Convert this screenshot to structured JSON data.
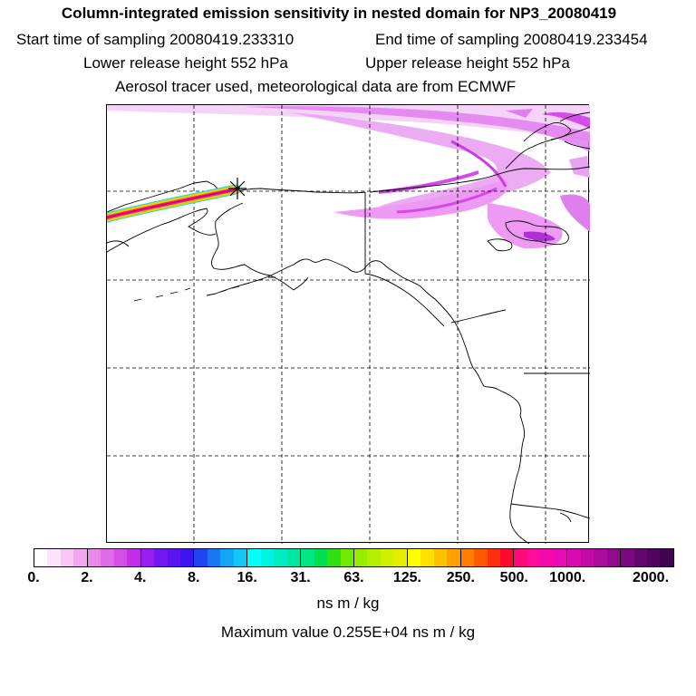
{
  "header": {
    "title": "Column-integrated emission sensitivity in nested domain for NP3_20080419",
    "start_time": "Start time of sampling 20080419.233310",
    "end_time": "End time of sampling 20080419.233454",
    "lower_release": "Lower release height  552 hPa",
    "upper_release": "Upper release height  552 hPa",
    "tracer_info": "Aerosol tracer used, meteorological data are from ECMWF"
  },
  "colorbar": {
    "ticks": [
      "0.",
      "2.",
      "4.",
      "8.",
      "16.",
      "31.",
      "63.",
      "125.",
      "250.",
      "500.",
      "1000.",
      "2000."
    ],
    "units": "ns m / kg",
    "segments": [
      [
        "#ffffff",
        "#fbe3fb",
        "#f6c6f6",
        "#f1a8f1"
      ],
      [
        "#e88ae8",
        "#e06be6",
        "#d44de4",
        "#c22de6"
      ],
      [
        "#9a1ef0",
        "#7316f2",
        "#5a14f2",
        "#3f14f2"
      ],
      [
        "#2044f0",
        "#1878f2",
        "#14a6f4",
        "#12c8f4"
      ],
      [
        "#00ffff",
        "#00f4e4",
        "#00ecc4",
        "#00e6a4"
      ],
      [
        "#00e680",
        "#00e050",
        "#30e010",
        "#70e800"
      ],
      [
        "#98ec00",
        "#b4ee00",
        "#d0f000",
        "#e6ee00"
      ],
      [
        "#ffff00",
        "#ffe000",
        "#ffc000",
        "#ffa000"
      ],
      [
        "#ff8000",
        "#ff5a00",
        "#ff3010",
        "#ff0a2a"
      ],
      [
        "#ff0a7a",
        "#ff0a9a",
        "#f40aaa",
        "#e80ab4"
      ],
      [
        "#d80ab0",
        "#c40aa6",
        "#ac0a9c",
        "#92088e"
      ],
      [
        "#7a0880",
        "#640670",
        "#520460",
        "#3e0650"
      ]
    ],
    "maximum": "Maximum value  0.255E+04 ns m / kg"
  },
  "map": {
    "plume_color": "#d93cf0",
    "release_marker": "asterisk-marker"
  }
}
